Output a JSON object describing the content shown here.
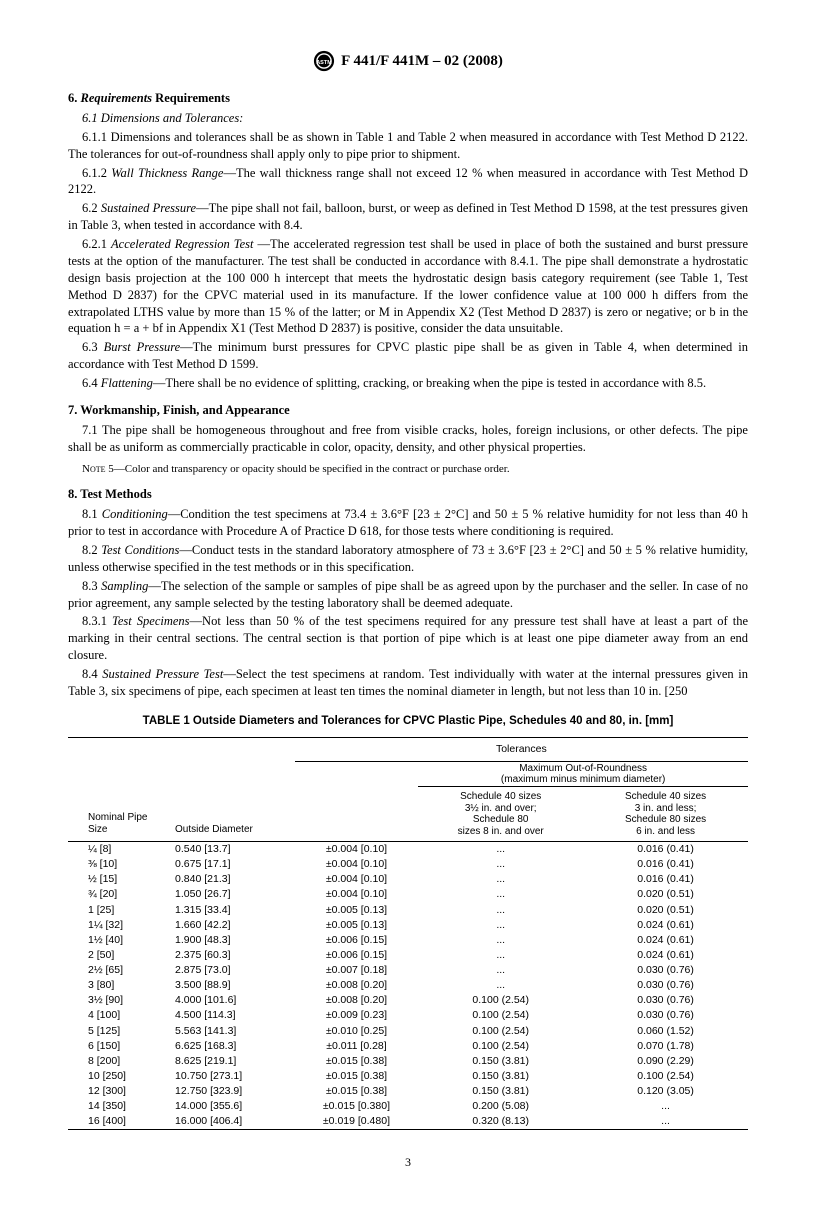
{
  "header": {
    "spec": "F 441/F 441M – 02 (2008)"
  },
  "sections": {
    "s6": {
      "num": "6.",
      "title": "Requirements",
      "title2": "Requirements"
    },
    "s6_1": "6.1  Dimensions and Tolerances:",
    "s6_1_1": "6.1.1  Dimensions and tolerances shall be as shown in Table 1 and Table 2 when measured in accordance with Test Method D 2122. The tolerances for out-of-roundness shall apply only to pipe prior to shipment.",
    "s6_1_2_lbl": "6.1.2  ",
    "s6_1_2_ital": "Wall Thickness Range",
    "s6_1_2_txt": "—The wall thickness range shall not exceed 12 % when measured in accordance with Test Method D 2122.",
    "s6_2_lbl": "6.2  ",
    "s6_2_ital": "Sustained Pressure",
    "s6_2_txt": "—The pipe shall not fail, balloon, burst, or weep as defined in Test Method D 1598, at the test pressures given in Table 3, when tested in accordance with 8.4.",
    "s6_2_1_lbl": "6.2.1  ",
    "s6_2_1_ital": "Accelerated Regression Test ",
    "s6_2_1_txt": "—The accelerated regression test shall be used in place of both the sustained and burst pressure tests at the option of the manufacturer. The test shall be conducted in accordance with 8.4.1. The pipe shall demonstrate a hydrostatic design basis projection at the 100 000 h intercept that meets the hydrostatic design basis category requirement (see Table 1, Test Method D 2837) for the CPVC material used in its manufacture. If the lower confidence value at 100 000 h differs from the extrapolated LTHS value by more than 15 % of the latter; or M in Appendix X2 (Test Method D 2837) is zero or negative; or b in the equation h = a + bf in Appendix X1 (Test Method D 2837) is positive, consider the data unsuitable.",
    "s6_3_lbl": "6.3  ",
    "s6_3_ital": "Burst Pressure",
    "s6_3_txt": "—The minimum burst pressures for CPVC plastic pipe shall be as given in Table 4, when determined in accordance with Test Method D 1599.",
    "s6_4_lbl": "6.4  ",
    "s6_4_ital": "Flattening",
    "s6_4_txt": "—There shall be no evidence of splitting, cracking, or breaking when the pipe is tested in accordance with 8.5.",
    "s7": {
      "num": "7.",
      "title": "Workmanship, Finish, and Appearance"
    },
    "s7_1": "7.1  The pipe shall be homogeneous throughout and free from visible cracks, holes, foreign inclusions, or other defects. The pipe shall be as uniform as commercially practicable in color, opacity, density, and other physical properties.",
    "note5_lbl": "Note 5",
    "note5_txt": "—Color and transparency or opacity should be specified in the contract or purchase order.",
    "s8": {
      "num": "8.",
      "title": "Test Methods"
    },
    "s8_1_lbl": "8.1  ",
    "s8_1_ital": "Conditioning",
    "s8_1_txt": "—Condition the test specimens at 73.4 ± 3.6°F [23 ± 2°C] and 50 ± 5 % relative humidity for not less than 40 h prior to test in accordance with Procedure A of Practice D 618, for those tests where conditioning is required.",
    "s8_2_lbl": "8.2  ",
    "s8_2_ital": "Test Conditions",
    "s8_2_txt": "—Conduct tests in the standard laboratory atmosphere of 73 ± 3.6°F [23 ± 2°C] and 50 ± 5 % relative humidity, unless otherwise specified in the test methods or in this specification.",
    "s8_3_lbl": "8.3  ",
    "s8_3_ital": "Sampling",
    "s8_3_txt": "—The selection of the sample or samples of pipe shall be as agreed upon by the purchaser and the seller. In case of no prior agreement, any sample selected by the testing laboratory shall be deemed adequate.",
    "s8_3_1_lbl": "8.3.1  ",
    "s8_3_1_ital": "Test Specimens",
    "s8_3_1_txt": "—Not less than 50 % of the test specimens required for any pressure test shall have at least a part of the marking in their central sections. The central section is that portion of pipe which is at least one pipe diameter away from an end closure.",
    "s8_4_lbl": "8.4  ",
    "s8_4_ital": "Sustained Pressure Test",
    "s8_4_txt": "—Select the test specimens at random. Test individually with water at the internal pressures given in Table 3, six specimens of pipe, each specimen at least ten times the nominal diameter in length, but not less than 10 in. [250"
  },
  "table1": {
    "title": "TABLE 1   Outside Diameters and Tolerances for CPVC Plastic Pipe, Schedules 40 and 80, in. [mm]",
    "head": {
      "tol": "Tolerances",
      "nps": "Nominal Pipe Size",
      "od": "Outside Diameter",
      "oor": "Maximum Out-of-Roundness",
      "oor2": "(maximum minus minimum diameter)",
      "col4a": "Schedule 40 sizes",
      "col4b": "3½ in. and over;",
      "col4c": "Schedule 80",
      "col4d": "sizes 8 in. and over",
      "col5a": "Schedule 40 sizes",
      "col5b": "3 in. and less;",
      "col5c": "Schedule 80 sizes",
      "col5d": "6 in. and less"
    },
    "rows": [
      {
        "size": "¼  [8]",
        "od": "0.540 [13.7]",
        "tol": "±0.004 [0.10]",
        "oor1": "...",
        "oor2": "0.016 (0.41)"
      },
      {
        "size": "⅜  [10]",
        "od": "0.675 [17.1]",
        "tol": "±0.004 [0.10]",
        "oor1": "...",
        "oor2": "0.016 (0.41)"
      },
      {
        "size": "½  [15]",
        "od": "0.840 [21.3]",
        "tol": "±0.004 [0.10]",
        "oor1": "...",
        "oor2": "0.016 (0.41)"
      },
      {
        "size": "¾  [20]",
        "od": "1.050 [26.7]",
        "tol": "±0.004 [0.10]",
        "oor1": "...",
        "oor2": "0.020 (0.51)"
      },
      {
        "size": "1 [25]",
        "od": "1.315 [33.4]",
        "tol": "±0.005 [0.13]",
        "oor1": "...",
        "oor2": "0.020 (0.51)"
      },
      {
        "size": "1¼ [32]",
        "od": "1.660 [42.2]",
        "tol": "±0.005 [0.13]",
        "oor1": "...",
        "oor2": "0.024 (0.61)"
      },
      {
        "size": "1½ [40]",
        "od": "1.900 [48.3]",
        "tol": "±0.006 [0.15]",
        "oor1": "...",
        "oor2": "0.024 (0.61)"
      },
      {
        "size": "2 [50]",
        "od": "2.375 [60.3]",
        "tol": "±0.006 [0.15]",
        "oor1": "...",
        "oor2": "0.024 (0.61)"
      },
      {
        "size": "2½ [65]",
        "od": "2.875 [73.0]",
        "tol": "±0.007 [0.18]",
        "oor1": "...",
        "oor2": "0.030 (0.76)"
      },
      {
        "size": "3 [80]",
        "od": "3.500 [88.9]",
        "tol": "±0.008 [0.20]",
        "oor1": "...",
        "oor2": "0.030 (0.76)"
      },
      {
        "size": "3½ [90]",
        "od": "4.000 [101.6]",
        "tol": "±0.008 [0.20]",
        "oor1": "0.100 (2.54)",
        "oor2": "0.030 (0.76)"
      },
      {
        "size": "4 [100]",
        "od": "4.500 [114.3]",
        "tol": "±0.009 [0.23]",
        "oor1": "0.100 (2.54)",
        "oor2": "0.030 (0.76)"
      },
      {
        "size": "5 [125]",
        "od": "5.563 [141.3]",
        "tol": "±0.010 [0.25]",
        "oor1": "0.100 (2.54)",
        "oor2": "0.060 (1.52)"
      },
      {
        "size": "6 [150]",
        "od": "6.625 [168.3]",
        "tol": "±0.011 [0.28]",
        "oor1": "0.100 (2.54)",
        "oor2": "0.070 (1.78)"
      },
      {
        "size": "8 [200]",
        "od": "8.625 [219.1]",
        "tol": "±0.015 [0.38]",
        "oor1": "0.150 (3.81)",
        "oor2": "0.090 (2.29)"
      },
      {
        "size": "10 [250]",
        "od": "10.750 [273.1]",
        "tol": "±0.015 [0.38]",
        "oor1": "0.150 (3.81)",
        "oor2": "0.100 (2.54)"
      },
      {
        "size": "12 [300]",
        "od": "12.750 [323.9]",
        "tol": "±0.015 [0.38]",
        "oor1": "0.150 (3.81)",
        "oor2": "0.120 (3.05)"
      },
      {
        "size": "14 [350]",
        "od": "14.000 [355.6]",
        "tol": "±0.015 [0.380]",
        "oor1": "0.200 (5.08)",
        "oor2": "..."
      },
      {
        "size": "16 [400]",
        "od": "16.000 [406.4]",
        "tol": "±0.019 [0.480]",
        "oor1": "0.320 (8.13)",
        "oor2": "..."
      }
    ]
  },
  "pagenum": "3"
}
